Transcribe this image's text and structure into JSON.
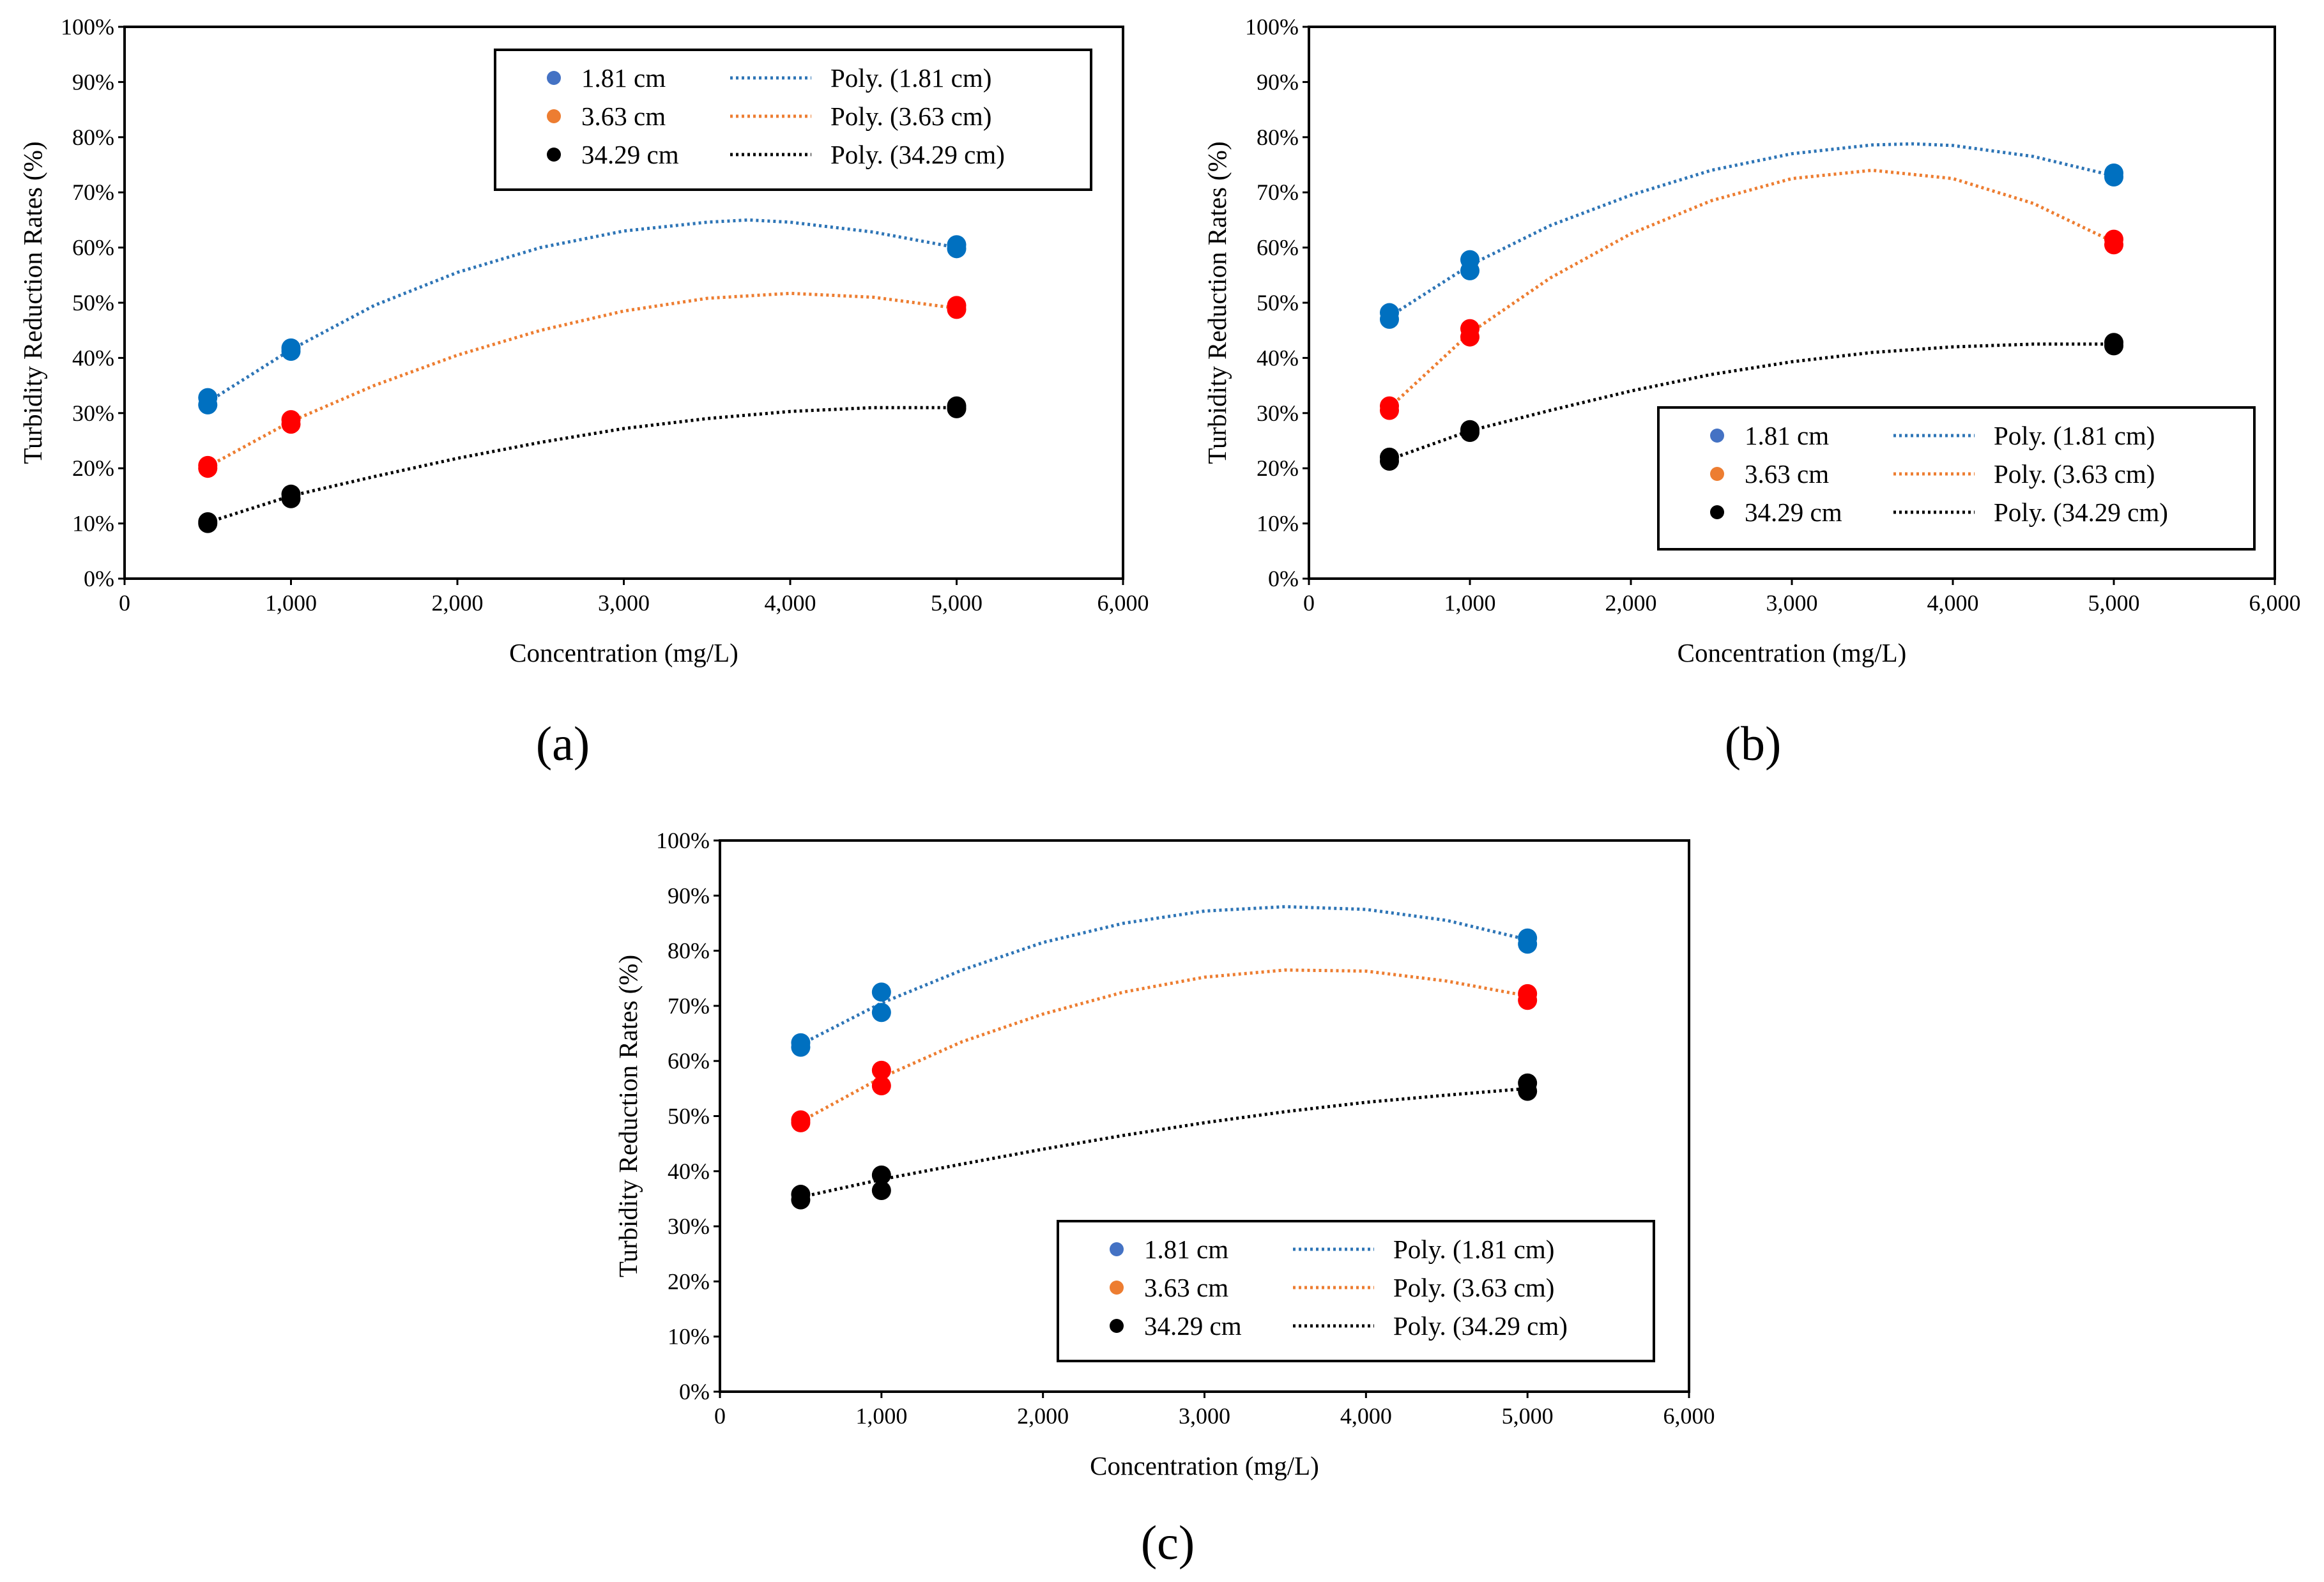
{
  "colors": {
    "blue": "#0070c0",
    "red": "#ff0000",
    "black": "#000000",
    "legend_blue": "#4472c4",
    "legend_orange": "#ed7d31",
    "trend_blue": "#2e75b6",
    "trend_orange": "#ed7d31",
    "trend_black": "#000000"
  },
  "chart_data": [
    {
      "panel_label": "(a)",
      "type": "scatter",
      "xlabel": "Concentration (mg/L)",
      "ylabel": "Turbidity Reduction Rates (%)",
      "xlim": [
        0,
        6000
      ],
      "ylim": [
        0,
        100
      ],
      "x_ticks": [
        "0",
        "1,000",
        "2,000",
        "3,000",
        "4,000",
        "5,000",
        "6,000"
      ],
      "y_ticks": [
        "0%",
        "10%",
        "20%",
        "30%",
        "40%",
        "50%",
        "60%",
        "70%",
        "80%",
        "90%",
        "100%"
      ],
      "legend": {
        "position": "top-right",
        "entries": [
          "1.81 cm",
          "3.63 cm",
          "34.29 cm"
        ],
        "trend_entries": [
          "Poly. (1.81 cm)",
          "Poly. (3.63 cm)",
          "Poly. (34.29 cm)"
        ]
      },
      "series": [
        {
          "name": "1.81 cm",
          "color_key": "blue",
          "trend_color_key": "trend_blue",
          "legend_color_key": "legend_blue",
          "points": [
            [
              500,
              31.5
            ],
            [
              500,
              32.8
            ],
            [
              1000,
              41.2
            ],
            [
              1000,
              41.8
            ],
            [
              5000,
              59.8
            ],
            [
              5000,
              60.5
            ]
          ],
          "trend": [
            [
              500,
              32.0
            ],
            [
              1000,
              41.5
            ],
            [
              1500,
              49.5
            ],
            [
              2000,
              55.5
            ],
            [
              2500,
              60.0
            ],
            [
              3000,
              63.0
            ],
            [
              3500,
              64.6
            ],
            [
              3750,
              65.0
            ],
            [
              4000,
              64.6
            ],
            [
              4500,
              62.8
            ],
            [
              5000,
              60.0
            ]
          ]
        },
        {
          "name": "3.63 cm",
          "color_key": "red",
          "trend_color_key": "trend_orange",
          "legend_color_key": "legend_orange",
          "points": [
            [
              500,
              20.0
            ],
            [
              500,
              20.5
            ],
            [
              1000,
              28.0
            ],
            [
              1000,
              28.8
            ],
            [
              5000,
              48.8
            ],
            [
              5000,
              49.5
            ]
          ],
          "trend": [
            [
              500,
              20.3
            ],
            [
              1000,
              28.5
            ],
            [
              1500,
              35.0
            ],
            [
              2000,
              40.5
            ],
            [
              2500,
              45.0
            ],
            [
              3000,
              48.5
            ],
            [
              3500,
              50.8
            ],
            [
              4000,
              51.7
            ],
            [
              4500,
              51.0
            ],
            [
              5000,
              49.0
            ]
          ]
        },
        {
          "name": "34.29 cm",
          "color_key": "black",
          "trend_color_key": "trend_black",
          "legend_color_key": "black",
          "points": [
            [
              500,
              10.0
            ],
            [
              500,
              10.3
            ],
            [
              1000,
              14.5
            ],
            [
              1000,
              15.3
            ],
            [
              5000,
              30.8
            ],
            [
              5000,
              31.3
            ]
          ],
          "trend": [
            [
              500,
              10.2
            ],
            [
              1000,
              15.0
            ],
            [
              1500,
              18.5
            ],
            [
              2000,
              21.8
            ],
            [
              2500,
              24.7
            ],
            [
              3000,
              27.2
            ],
            [
              3500,
              29.0
            ],
            [
              4000,
              30.3
            ],
            [
              4500,
              31.0
            ],
            [
              5000,
              31.0
            ]
          ]
        }
      ]
    },
    {
      "panel_label": "(b)",
      "type": "scatter",
      "xlabel": "Concentration (mg/L)",
      "ylabel": "Turbidity Reduction Rates (%)",
      "xlim": [
        0,
        6000
      ],
      "ylim": [
        0,
        100
      ],
      "x_ticks": [
        "0",
        "1,000",
        "2,000",
        "3,000",
        "4,000",
        "5,000",
        "6,000"
      ],
      "y_ticks": [
        "0%",
        "10%",
        "20%",
        "30%",
        "40%",
        "50%",
        "60%",
        "70%",
        "80%",
        "90%",
        "100%"
      ],
      "legend": {
        "position": "bottom-right",
        "entries": [
          "1.81 cm",
          "3.63 cm",
          "34.29 cm"
        ],
        "trend_entries": [
          "Poly. (1.81 cm)",
          "Poly. (3.63 cm)",
          "Poly. (34.29 cm)"
        ]
      },
      "series": [
        {
          "name": "1.81 cm",
          "color_key": "blue",
          "trend_color_key": "trend_blue",
          "legend_color_key": "legend_blue",
          "points": [
            [
              500,
              47.0
            ],
            [
              500,
              48.2
            ],
            [
              1000,
              55.8
            ],
            [
              1000,
              57.8
            ],
            [
              5000,
              72.8
            ],
            [
              5000,
              73.5
            ]
          ],
          "trend": [
            [
              500,
              47.5
            ],
            [
              1000,
              56.8
            ],
            [
              1500,
              64.0
            ],
            [
              2000,
              69.5
            ],
            [
              2500,
              74.0
            ],
            [
              3000,
              77.0
            ],
            [
              3500,
              78.6
            ],
            [
              3750,
              78.8
            ],
            [
              4000,
              78.5
            ],
            [
              4500,
              76.5
            ],
            [
              5000,
              73.0
            ]
          ]
        },
        {
          "name": "3.63 cm",
          "color_key": "red",
          "trend_color_key": "trend_orange",
          "legend_color_key": "legend_orange",
          "points": [
            [
              500,
              30.5
            ],
            [
              500,
              31.3
            ],
            [
              1000,
              43.8
            ],
            [
              1000,
              45.3
            ],
            [
              5000,
              60.5
            ],
            [
              5000,
              61.5
            ]
          ],
          "trend": [
            [
              500,
              31.0
            ],
            [
              1000,
              44.5
            ],
            [
              1500,
              54.5
            ],
            [
              2000,
              62.5
            ],
            [
              2500,
              68.5
            ],
            [
              3000,
              72.5
            ],
            [
              3500,
              74.0
            ],
            [
              4000,
              72.5
            ],
            [
              4500,
              68.0
            ],
            [
              5000,
              61.0
            ]
          ]
        },
        {
          "name": "34.29 cm",
          "color_key": "black",
          "trend_color_key": "trend_black",
          "legend_color_key": "black",
          "points": [
            [
              500,
              21.3
            ],
            [
              500,
              22.0
            ],
            [
              1000,
              26.5
            ],
            [
              1000,
              27.0
            ],
            [
              5000,
              42.2
            ],
            [
              5000,
              42.8
            ]
          ],
          "trend": [
            [
              500,
              21.6
            ],
            [
              1000,
              26.8
            ],
            [
              1500,
              30.5
            ],
            [
              2000,
              34.0
            ],
            [
              2500,
              37.0
            ],
            [
              3000,
              39.3
            ],
            [
              3500,
              41.0
            ],
            [
              4000,
              42.0
            ],
            [
              4500,
              42.5
            ],
            [
              5000,
              42.5
            ]
          ]
        }
      ]
    },
    {
      "panel_label": "(c)",
      "type": "scatter",
      "xlabel": "Concentration (mg/L)",
      "ylabel": "Turbidity Reduction Rates (%)",
      "xlim": [
        0,
        6000
      ],
      "ylim": [
        0,
        100
      ],
      "x_ticks": [
        "0",
        "1,000",
        "2,000",
        "3,000",
        "4,000",
        "5,000",
        "6,000"
      ],
      "y_ticks": [
        "0%",
        "10%",
        "20%",
        "30%",
        "40%",
        "50%",
        "60%",
        "70%",
        "80%",
        "90%",
        "100%"
      ],
      "legend": {
        "position": "bottom-right",
        "entries": [
          "1.81 cm",
          "3.63 cm",
          "34.29 cm"
        ],
        "trend_entries": [
          "Poly. (1.81 cm)",
          "Poly. (3.63 cm)",
          "Poly. (34.29 cm)"
        ]
      },
      "series": [
        {
          "name": "1.81 cm",
          "color_key": "blue",
          "trend_color_key": "trend_blue",
          "legend_color_key": "legend_blue",
          "points": [
            [
              500,
              62.5
            ],
            [
              500,
              63.3
            ],
            [
              1000,
              68.8
            ],
            [
              1000,
              72.5
            ],
            [
              5000,
              81.2
            ],
            [
              5000,
              82.3
            ]
          ],
          "trend": [
            [
              500,
              63.0
            ],
            [
              1000,
              70.5
            ],
            [
              1500,
              76.5
            ],
            [
              2000,
              81.5
            ],
            [
              2500,
              85.0
            ],
            [
              3000,
              87.2
            ],
            [
              3500,
              88.0
            ],
            [
              4000,
              87.5
            ],
            [
              4500,
              85.5
            ],
            [
              5000,
              82.0
            ]
          ]
        },
        {
          "name": "3.63 cm",
          "color_key": "red",
          "trend_color_key": "trend_orange",
          "legend_color_key": "legend_orange",
          "points": [
            [
              500,
              48.8
            ],
            [
              500,
              49.3
            ],
            [
              1000,
              55.5
            ],
            [
              1000,
              58.3
            ],
            [
              5000,
              71.0
            ],
            [
              5000,
              72.2
            ]
          ],
          "trend": [
            [
              500,
              49.0
            ],
            [
              1000,
              57.0
            ],
            [
              1500,
              63.5
            ],
            [
              2000,
              68.5
            ],
            [
              2500,
              72.5
            ],
            [
              3000,
              75.2
            ],
            [
              3500,
              76.5
            ],
            [
              4000,
              76.3
            ],
            [
              4500,
              74.5
            ],
            [
              5000,
              71.8
            ]
          ]
        },
        {
          "name": "34.29 cm",
          "color_key": "black",
          "trend_color_key": "trend_black",
          "legend_color_key": "black",
          "points": [
            [
              500,
              34.8
            ],
            [
              500,
              35.8
            ],
            [
              1000,
              36.5
            ],
            [
              1000,
              39.3
            ],
            [
              5000,
              54.5
            ],
            [
              5000,
              56.0
            ]
          ],
          "trend": [
            [
              500,
              35.3
            ],
            [
              1000,
              38.5
            ],
            [
              1500,
              41.3
            ],
            [
              2000,
              44.0
            ],
            [
              2500,
              46.5
            ],
            [
              3000,
              48.8
            ],
            [
              3500,
              50.8
            ],
            [
              4000,
              52.5
            ],
            [
              4500,
              53.8
            ],
            [
              5000,
              55.0
            ]
          ]
        }
      ]
    }
  ]
}
